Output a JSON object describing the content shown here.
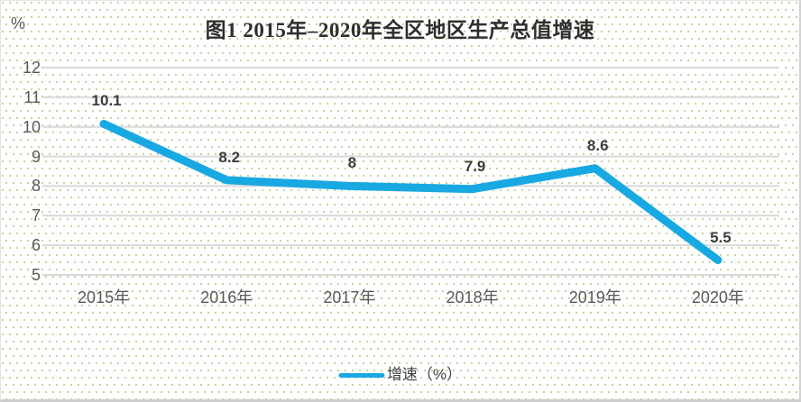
{
  "chart": {
    "title": "图1 2015年–2020年全区地区生产总值增速",
    "unit_label": "%",
    "legend_label": "增速（%）"
  },
  "colors": {
    "line": "#18a8e2",
    "grid": "#d9d9d9",
    "dot_pattern": "#c1d7a8",
    "tick_text": "#595959",
    "data_label_text": "#3d3d3d",
    "title_text": "#2e2e2e"
  },
  "chart_data": {
    "type": "line",
    "title": "图1 2015年–2020年全区地区生产总值增速",
    "categories": [
      "2015年",
      "2016年",
      "2017年",
      "2018年",
      "2019年",
      "2020年"
    ],
    "series": [
      {
        "name": "增速（%）",
        "values": [
          10.1,
          8.2,
          8,
          7.9,
          8.6,
          5.5
        ]
      }
    ],
    "point_labels": [
      "10.1",
      "8.2",
      "8",
      "7.9",
      "8.6",
      "5.5"
    ],
    "xlabel": "",
    "ylabel": "%",
    "ylim": [
      5,
      12
    ],
    "yticks": [
      5,
      6,
      7,
      8,
      9,
      10,
      11,
      12
    ],
    "grid": true,
    "legend_position": "bottom"
  }
}
